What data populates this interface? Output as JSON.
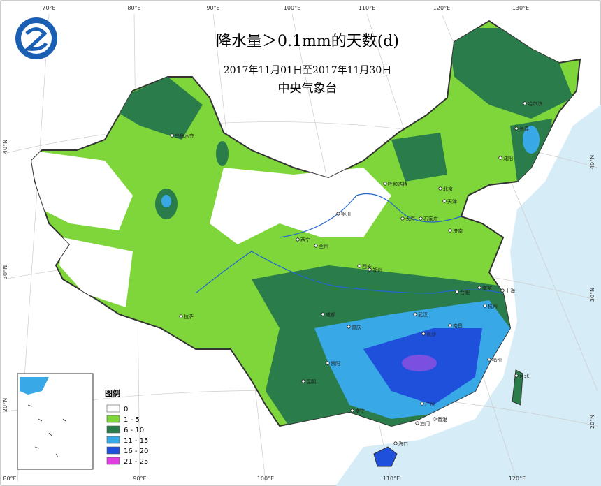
{
  "title": "降水量＞0.1mm的天数(d)",
  "subtitle": "2017年11月01日至2017年11月30日",
  "agency": "中央气象台",
  "legend": {
    "title": "图例",
    "items": [
      {
        "label": "0",
        "color": "#ffffff"
      },
      {
        "label": "1 - 5",
        "color": "#7ed63a"
      },
      {
        "label": "6 - 10",
        "color": "#2a7d4a"
      },
      {
        "label": "11 - 15",
        "color": "#38a8e6"
      },
      {
        "label": "16 - 20",
        "color": "#1e50dc"
      },
      {
        "label": "21 - 25",
        "color": "#e03ee0"
      }
    ]
  },
  "longitude_labels_top": [
    "70°E",
    "80°E",
    "90°E",
    "100°E",
    "110°E",
    "120°E",
    "130°E"
  ],
  "longitude_labels_bottom": [
    "80°E",
    "90°E",
    "100°E",
    "110°E",
    "120°E"
  ],
  "latitude_labels_left": [
    "40°N",
    "30°N",
    "20°N"
  ],
  "latitude_labels_right": [
    "40°N",
    "30°N",
    "20°N"
  ],
  "cities": [
    "乌鲁木齐",
    "哈尔滨",
    "长春",
    "沈阳",
    "呼和浩特",
    "北京",
    "天津",
    "银川",
    "太原",
    "石家庄",
    "济南",
    "西宁",
    "兰州",
    "郑州",
    "西安",
    "拉萨",
    "成都",
    "重庆",
    "武汉",
    "合肥",
    "南京",
    "上海",
    "杭州",
    "长沙",
    "南昌",
    "福州",
    "台北",
    "贵阳",
    "昆明",
    "南宁",
    "广州",
    "澳门",
    "香港",
    "海口"
  ]
}
